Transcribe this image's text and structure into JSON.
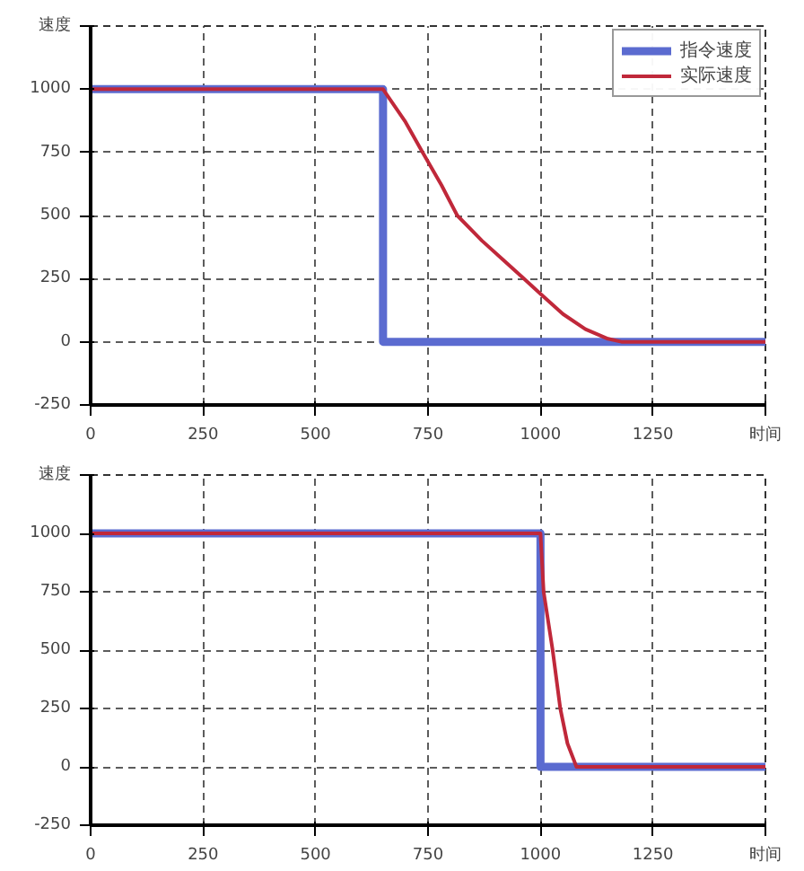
{
  "chart_data": [
    {
      "type": "line",
      "xlabel": "时间",
      "ylabel": "速度",
      "xlim": [
        0,
        1500
      ],
      "ylim": [
        -250,
        1250
      ],
      "xticks": [
        0,
        250,
        500,
        750,
        1000,
        1250,
        {
          "value": 1500,
          "label": null
        }
      ],
      "yticks": [
        -250,
        0,
        250,
        500,
        750,
        1000,
        {
          "value": 1250,
          "label": null
        }
      ],
      "grid": true,
      "legend": "top right",
      "line_style": "solid",
      "series": [
        {
          "name": "指令速度",
          "color": "#5b6bd0",
          "x": [
            0,
            650,
            650,
            1500
          ],
          "values": [
            1000,
            1000,
            0,
            0
          ]
        },
        {
          "name": "实际速度",
          "color": "#c0283a",
          "x": [
            0,
            650,
            700,
            738,
            780,
            815,
            870,
            920,
            963,
            1000,
            1050,
            1100,
            1150,
            1180,
            1500
          ],
          "values": [
            1000,
            1000,
            870,
            750,
            620,
            500,
            400,
            320,
            250,
            190,
            110,
            50,
            12,
            0,
            0
          ]
        }
      ]
    },
    {
      "type": "line",
      "xlabel": "时间",
      "ylabel": "速度",
      "xlim": [
        0,
        1500
      ],
      "ylim": [
        -250,
        1250
      ],
      "xticks": [
        0,
        250,
        500,
        750,
        1000,
        1250,
        {
          "value": 1500,
          "label": null
        }
      ],
      "yticks": [
        -250,
        0,
        250,
        500,
        750,
        1000,
        {
          "value": 1250,
          "label": null
        }
      ],
      "grid": true,
      "legend": false,
      "line_style": "solid",
      "series": [
        {
          "color": "#5b6bd0",
          "x": [
            0,
            1000,
            1000,
            1500
          ],
          "values": [
            1000,
            1000,
            0,
            0
          ]
        },
        {
          "color": "#c0283a",
          "x": [
            0,
            1000,
            1007,
            1027,
            1044,
            1060,
            1080,
            1500
          ],
          "values": [
            1000,
            1000,
            750,
            500,
            250,
            100,
            0,
            0
          ]
        }
      ]
    }
  ]
}
